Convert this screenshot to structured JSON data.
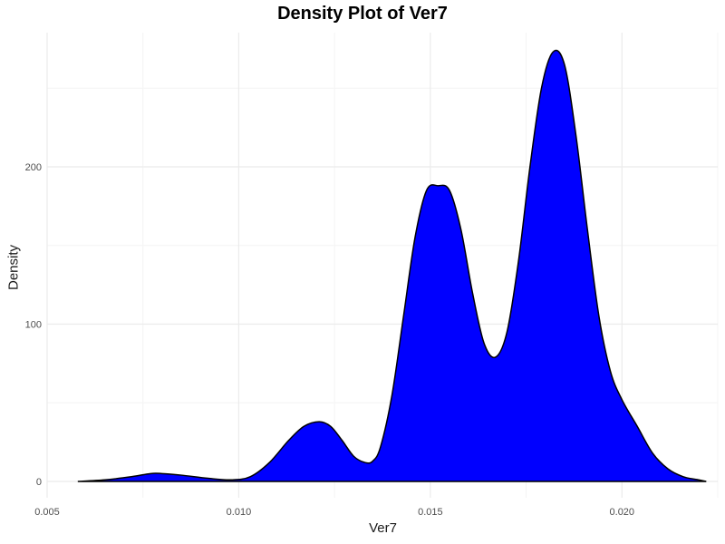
{
  "chart_data": {
    "type": "area",
    "title": "Density Plot of Ver7",
    "xlabel": "Ver7",
    "ylabel": "Density",
    "xlim": [
      0.005,
      0.0225
    ],
    "ylim": [
      0,
      290
    ],
    "x_ticks": [
      0.005,
      0.01,
      0.015,
      0.02
    ],
    "x_tick_labels": [
      "0.005",
      "0.010",
      "0.015",
      "0.020"
    ],
    "y_ticks": [
      0,
      100,
      200
    ],
    "y_tick_labels": [
      "0",
      "100",
      "200"
    ],
    "grid": true,
    "legend": "none",
    "colors": {
      "fill": "#0000ff",
      "stroke": "#000000",
      "grid_major": "#ebebeb",
      "grid_minor": "#f4f4f4",
      "tick_text": "#4d4d4d"
    },
    "x": [
      0.0058,
      0.0065,
      0.0072,
      0.0077,
      0.008,
      0.0085,
      0.0092,
      0.0098,
      0.0103,
      0.0108,
      0.0113,
      0.0117,
      0.0121,
      0.0124,
      0.0127,
      0.013,
      0.0133,
      0.0135,
      0.0137,
      0.014,
      0.0143,
      0.0146,
      0.0149,
      0.0152,
      0.0155,
      0.0158,
      0.0161,
      0.0164,
      0.0167,
      0.017,
      0.0173,
      0.0176,
      0.0179,
      0.0182,
      0.0185,
      0.0188,
      0.0191,
      0.0194,
      0.0197,
      0.02,
      0.0204,
      0.0208,
      0.0212,
      0.0216,
      0.022,
      0.0222
    ],
    "y": [
      0,
      1,
      3,
      5,
      5,
      4,
      2,
      1,
      3,
      12,
      26,
      35,
      38,
      35,
      26,
      16,
      12,
      13,
      22,
      55,
      105,
      155,
      185,
      188,
      185,
      160,
      120,
      88,
      79,
      95,
      140,
      200,
      250,
      273,
      265,
      220,
      160,
      105,
      70,
      52,
      35,
      18,
      8,
      3,
      1,
      0
    ]
  }
}
